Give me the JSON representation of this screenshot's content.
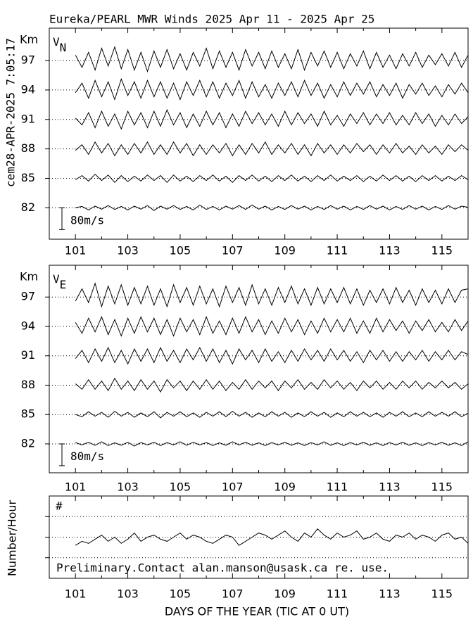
{
  "chart_data": [
    {
      "type": "line",
      "title": "Eureka/PEARL MWR Winds 2025 Apr 11 - 2025 Apr 25",
      "side_label": "cem28-APR-2025  7:05:17",
      "yunit": "Km",
      "panel_label": {
        "main": "V",
        "sub": "N"
      },
      "scale_bar": {
        "value": 80,
        "label": "80m/s"
      },
      "xlim": [
        100,
        116
      ],
      "xticks": [
        101,
        103,
        105,
        107,
        109,
        111,
        113,
        115
      ],
      "minor_xticks": [
        102,
        104,
        106,
        108,
        110,
        112,
        114,
        116
      ],
      "ylim": [
        78.8,
        100.3
      ],
      "yticks": [
        82,
        85,
        88,
        91,
        94,
        97
      ],
      "color": "#000000",
      "grid": true,
      "x": [
        101,
        101.25,
        101.5,
        101.75,
        102,
        102.25,
        102.5,
        102.75,
        103,
        103.25,
        103.5,
        103.75,
        104,
        104.25,
        104.5,
        104.75,
        105,
        105.25,
        105.5,
        105.75,
        106,
        106.25,
        106.5,
        106.75,
        107,
        107.25,
        107.5,
        107.75,
        108,
        108.25,
        108.5,
        108.75,
        109,
        109.25,
        109.5,
        109.75,
        110,
        110.25,
        110.5,
        110.75,
        111,
        111.25,
        111.5,
        111.75,
        112,
        112.25,
        112.5,
        112.75,
        113,
        113.25,
        113.5,
        113.75,
        114,
        114.25,
        114.5,
        114.75,
        115,
        115.25,
        115.5,
        115.75,
        116
      ],
      "series": [
        {
          "altitude": 97,
          "values": [
            20,
            -25,
            30,
            -35,
            45,
            -20,
            50,
            -30,
            40,
            -35,
            30,
            -40,
            35,
            -25,
            40,
            -30,
            25,
            -35,
            30,
            -20,
            45,
            -30,
            35,
            -25,
            30,
            -35,
            40,
            -20,
            30,
            -30,
            35,
            -25,
            25,
            -30,
            40,
            -35,
            30,
            -20,
            35,
            -25,
            30,
            -30,
            25,
            -20,
            35,
            -30,
            30,
            -25,
            20,
            -30,
            25,
            -20,
            30,
            -25,
            20,
            -15,
            25,
            -20,
            30,
            -25,
            20
          ]
        },
        {
          "altitude": 94,
          "values": [
            -10,
            25,
            -30,
            35,
            -25,
            30,
            -35,
            40,
            -20,
            30,
            -30,
            35,
            -25,
            30,
            -30,
            25,
            -35,
            30,
            -20,
            35,
            -25,
            30,
            -30,
            25,
            -20,
            35,
            -30,
            30,
            -25,
            20,
            -30,
            25,
            -20,
            30,
            -25,
            35,
            -20,
            25,
            -30,
            20,
            -25,
            30,
            -20,
            25,
            -15,
            30,
            -25,
            20,
            -20,
            25,
            -30,
            20,
            -15,
            25,
            -20,
            15,
            -25,
            20,
            -15,
            25,
            -10
          ]
        },
        {
          "altitude": 91,
          "values": [
            5,
            -20,
            25,
            -30,
            30,
            -25,
            20,
            -35,
            30,
            -20,
            25,
            -30,
            30,
            -25,
            35,
            -20,
            25,
            -30,
            20,
            -25,
            30,
            -20,
            25,
            -30,
            20,
            -25,
            30,
            -15,
            25,
            -20,
            20,
            -25,
            30,
            -20,
            25,
            -15,
            20,
            -25,
            30,
            -20,
            15,
            -25,
            20,
            -15,
            25,
            -20,
            20,
            -15,
            25,
            -20,
            15,
            -20,
            25,
            -15,
            20,
            -25,
            15,
            -20,
            20,
            -15,
            10
          ]
        },
        {
          "altitude": 88,
          "values": [
            -5,
            15,
            -20,
            25,
            -15,
            20,
            -25,
            15,
            -20,
            20,
            -15,
            25,
            -20,
            15,
            -20,
            25,
            -15,
            20,
            -25,
            15,
            -20,
            15,
            -15,
            20,
            -25,
            15,
            -20,
            20,
            -15,
            25,
            -20,
            15,
            -15,
            20,
            -20,
            15,
            -25,
            20,
            -15,
            15,
            -20,
            15,
            -15,
            20,
            -10,
            15,
            -20,
            15,
            -15,
            20,
            -15,
            10,
            -20,
            15,
            -15,
            10,
            -20,
            15,
            -10,
            15,
            -5
          ]
        },
        {
          "altitude": 85,
          "values": [
            -5,
            10,
            -10,
            15,
            -8,
            12,
            -15,
            10,
            -12,
            8,
            -10,
            12,
            -8,
            10,
            -15,
            12,
            -10,
            8,
            -12,
            10,
            -8,
            12,
            -10,
            8,
            -15,
            10,
            -8,
            12,
            -10,
            8,
            -12,
            10,
            -8,
            12,
            -10,
            8,
            -12,
            10,
            -8,
            12,
            -10,
            8,
            -8,
            10,
            -12,
            8,
            -10,
            12,
            -8,
            10,
            -10,
            8,
            -12,
            10,
            -8,
            10,
            -10,
            8,
            -8,
            10,
            -5
          ]
        },
        {
          "altitude": 82,
          "values": [
            0,
            5,
            -8,
            6,
            -5,
            8,
            -6,
            5,
            -8,
            6,
            -5,
            8,
            -10,
            6,
            -5,
            8,
            -6,
            5,
            -8,
            10,
            -6,
            5,
            -8,
            6,
            -5,
            8,
            -6,
            10,
            -5,
            6,
            -8,
            5,
            -6,
            8,
            -5,
            6,
            -8,
            5,
            -6,
            8,
            -5,
            6,
            -8,
            5,
            -6,
            8,
            -5,
            6,
            -8,
            5,
            -6,
            8,
            -5,
            6,
            -8,
            5,
            -6,
            8,
            -5,
            6,
            2
          ]
        }
      ]
    },
    {
      "type": "line",
      "yunit": "Km",
      "panel_label": {
        "main": "V",
        "sub": "E"
      },
      "scale_bar": {
        "value": 80,
        "label": "80m/s"
      },
      "xlim": [
        100,
        116
      ],
      "xticks": [
        101,
        103,
        105,
        107,
        109,
        111,
        113,
        115
      ],
      "minor_xticks": [
        102,
        104,
        106,
        108,
        110,
        112,
        114,
        116
      ],
      "ylim": [
        79.05,
        100.25
      ],
      "yticks": [
        82,
        85,
        88,
        91,
        94,
        97
      ],
      "color": "#000000",
      "grid": true,
      "x": [
        101,
        101.25,
        101.5,
        101.75,
        102,
        102.25,
        102.5,
        102.75,
        103,
        103.25,
        103.5,
        103.75,
        104,
        104.25,
        104.5,
        104.75,
        105,
        105.25,
        105.5,
        105.75,
        106,
        106.25,
        106.5,
        106.75,
        107,
        107.25,
        107.5,
        107.75,
        108,
        108.25,
        108.5,
        108.75,
        109,
        109.25,
        109.5,
        109.75,
        110,
        110.25,
        110.5,
        110.75,
        111,
        111.25,
        111.5,
        111.75,
        112,
        112.25,
        112.5,
        112.75,
        113,
        113.25,
        113.5,
        113.75,
        114,
        114.25,
        114.5,
        114.75,
        115,
        115.25,
        115.5,
        115.75,
        116
      ],
      "series": [
        {
          "altitude": 97,
          "values": [
            -15,
            30,
            -20,
            50,
            -35,
            40,
            -25,
            45,
            -30,
            35,
            -25,
            40,
            -30,
            30,
            -35,
            45,
            -20,
            35,
            -30,
            40,
            -25,
            30,
            -35,
            40,
            -20,
            35,
            -30,
            45,
            -25,
            30,
            -30,
            35,
            -20,
            40,
            -25,
            30,
            -30,
            35,
            -25,
            30,
            -20,
            35,
            -25,
            30,
            -30,
            25,
            -20,
            30,
            -25,
            35,
            -20,
            25,
            -30,
            30,
            -20,
            25,
            -25,
            30,
            -20,
            25,
            30
          ]
        },
        {
          "altitude": 94,
          "values": [
            15,
            -25,
            30,
            -20,
            35,
            -30,
            25,
            -35,
            30,
            -25,
            35,
            -20,
            30,
            -30,
            25,
            -35,
            30,
            -20,
            25,
            -30,
            35,
            -25,
            20,
            -30,
            30,
            -25,
            35,
            -20,
            25,
            -30,
            20,
            -25,
            30,
            -20,
            25,
            -30,
            20,
            -25,
            30,
            -20,
            25,
            -20,
            30,
            -25,
            20,
            -25,
            30,
            -20,
            25,
            -15,
            20,
            -25,
            20,
            -15,
            25,
            -20,
            15,
            -20,
            25,
            -15,
            20
          ]
        },
        {
          "altitude": 91,
          "values": [
            -10,
            20,
            -25,
            25,
            -20,
            30,
            -25,
            20,
            -30,
            25,
            -20,
            25,
            -25,
            30,
            -20,
            20,
            -25,
            25,
            -15,
            30,
            -20,
            25,
            -25,
            20,
            -30,
            25,
            -15,
            20,
            -25,
            25,
            -20,
            15,
            -25,
            20,
            -20,
            25,
            -15,
            20,
            -20,
            25,
            -15,
            20,
            -20,
            15,
            -25,
            20,
            -15,
            20,
            -20,
            15,
            -20,
            15,
            -15,
            20,
            -20,
            15,
            -15,
            20,
            -15,
            15,
            5
          ]
        },
        {
          "altitude": 88,
          "values": [
            5,
            -15,
            20,
            -15,
            15,
            -20,
            25,
            -15,
            15,
            -20,
            20,
            -15,
            15,
            -25,
            20,
            -10,
            15,
            -20,
            15,
            -15,
            20,
            -15,
            15,
            -20,
            10,
            -15,
            20,
            -15,
            15,
            -10,
            15,
            -20,
            15,
            -10,
            20,
            -15,
            10,
            -15,
            20,
            -10,
            15,
            -15,
            10,
            -20,
            15,
            -10,
            15,
            -15,
            10,
            -15,
            15,
            -10,
            15,
            -15,
            10,
            -10,
            15,
            -10,
            10,
            -15,
            5
          ]
        },
        {
          "altitude": 85,
          "values": [
            0,
            -8,
            10,
            -6,
            8,
            -10,
            12,
            -6,
            8,
            -10,
            6,
            -8,
            10,
            -12,
            8,
            -6,
            10,
            -8,
            6,
            -10,
            8,
            -6,
            10,
            -8,
            12,
            -6,
            8,
            -10,
            6,
            -8,
            10,
            -6,
            8,
            -10,
            6,
            -8,
            10,
            -6,
            8,
            -10,
            6,
            -8,
            10,
            -6,
            8,
            -8,
            6,
            -10,
            8,
            -6,
            10,
            -8,
            6,
            -8,
            10,
            -6,
            8,
            -6,
            10,
            -8,
            5
          ]
        },
        {
          "altitude": 82,
          "values": [
            5,
            -4,
            6,
            -5,
            8,
            -6,
            4,
            -5,
            6,
            -8,
            5,
            -4,
            6,
            -6,
            5,
            -4,
            8,
            -5,
            6,
            -4,
            5,
            -6,
            4,
            -5,
            8,
            -4,
            6,
            -5,
            4,
            -6,
            5,
            -4,
            6,
            -5,
            4,
            -6,
            5,
            -4,
            8,
            -5,
            4,
            -6,
            5,
            -4,
            6,
            -5,
            4,
            -6,
            5,
            -4,
            6,
            -5,
            4,
            -6,
            5,
            -4,
            6,
            -5,
            4,
            -6,
            8
          ]
        }
      ]
    },
    {
      "type": "line",
      "ylabel": "Number/Hour",
      "panel_label": "#",
      "annotation": "Preliminary.Contact alan.manson@usask.ca re. use.",
      "xlabel": "DAYS OF THE YEAR (TIC AT 0 UT)",
      "xlim": [
        100,
        116
      ],
      "xticks": [
        101,
        103,
        105,
        107,
        109,
        111,
        113,
        115
      ],
      "minor_xticks": [
        102,
        104,
        106,
        108,
        110,
        112,
        114,
        116
      ],
      "ylim": [
        0,
        40
      ],
      "gridlines": [
        10,
        20,
        30
      ],
      "color": "#000000",
      "x": [
        101,
        101.25,
        101.5,
        101.75,
        102,
        102.25,
        102.5,
        102.75,
        103,
        103.25,
        103.5,
        103.75,
        104,
        104.25,
        104.5,
        104.75,
        105,
        105.25,
        105.5,
        105.75,
        106,
        106.25,
        106.5,
        106.75,
        107,
        107.25,
        107.5,
        107.75,
        108,
        108.25,
        108.5,
        108.75,
        109,
        109.25,
        109.5,
        109.75,
        110,
        110.25,
        110.5,
        110.75,
        111,
        111.25,
        111.5,
        111.75,
        112,
        112.25,
        112.5,
        112.75,
        113,
        113.25,
        113.5,
        113.75,
        114,
        114.25,
        114.5,
        114.75,
        115,
        115.25,
        115.5,
        115.75,
        116
      ],
      "series": [
        {
          "values": [
            16,
            18,
            17,
            19,
            21,
            18,
            20,
            17,
            19,
            22,
            18,
            20,
            21,
            19,
            18,
            20,
            22,
            19,
            21,
            20,
            18,
            17,
            19,
            21,
            20,
            16,
            18,
            20,
            22,
            21,
            19,
            21,
            23,
            20,
            18,
            22,
            20,
            24,
            21,
            19,
            22,
            20,
            21,
            23,
            19,
            20,
            22,
            19,
            18,
            21,
            20,
            22,
            19,
            21,
            20,
            18,
            21,
            22,
            19,
            20,
            17
          ]
        }
      ]
    }
  ]
}
